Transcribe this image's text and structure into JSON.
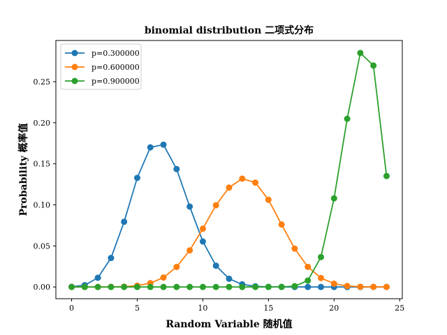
{
  "chart_data": {
    "type": "line",
    "title": "binomial distribution 二项式分布",
    "xlabel": "Random Variable 随机值",
    "ylabel": "Probability 概率值",
    "xlim": [
      -1.2,
      25.2
    ],
    "ylim": [
      -0.0143,
      0.3002
    ],
    "xticks": [
      0,
      5,
      10,
      15,
      20,
      25
    ],
    "xtick_labels": [
      "0",
      "5",
      "10",
      "15",
      "20",
      "25"
    ],
    "yticks": [
      0.0,
      0.05,
      0.1,
      0.15,
      0.2,
      0.25
    ],
    "ytick_labels": [
      "0.00",
      "0.05",
      "0.10",
      "0.15",
      "0.20",
      "0.25"
    ],
    "grid": false,
    "legend_position": "top-left",
    "markers": "circle",
    "x": [
      0,
      1,
      2,
      3,
      4,
      5,
      6,
      7,
      8,
      9,
      10,
      11,
      12,
      13,
      14,
      15,
      16,
      17,
      18,
      19,
      20,
      21,
      22,
      23,
      24
    ],
    "series": [
      {
        "name": "p=0.300000",
        "color": "#1f77b4",
        "values": [
          0.0002,
          0.0022,
          0.0112,
          0.0353,
          0.0794,
          0.1329,
          0.17,
          0.1733,
          0.1436,
          0.0979,
          0.0554,
          0.0259,
          0.01,
          0.0032,
          0.0008,
          0.0002,
          0.0,
          0.0,
          0.0,
          0.0,
          0.0,
          0.0,
          0.0,
          0.0,
          0.0
        ]
      },
      {
        "name": "p=0.600000",
        "color": "#ff7f0e",
        "values": [
          0.0,
          0.0,
          0.0,
          0.0001,
          0.0004,
          0.0016,
          0.0047,
          0.0115,
          0.0244,
          0.0446,
          0.071,
          0.0995,
          0.1211,
          0.1319,
          0.1271,
          0.1062,
          0.0761,
          0.0467,
          0.0245,
          0.0109,
          0.004,
          0.0012,
          0.0003,
          0.0001,
          0.0
        ]
      },
      {
        "name": "p=0.900000",
        "color": "#2ca02c",
        "values": [
          0.0,
          0.0,
          0.0,
          0.0,
          0.0,
          0.0,
          0.0,
          0.0,
          0.0,
          0.0,
          0.0,
          0.0,
          0.0,
          0.0,
          0.0,
          0.0,
          0.0001,
          0.001,
          0.0078,
          0.0364,
          0.1079,
          0.2048,
          0.285,
          0.2697,
          0.1351
        ]
      }
    ]
  }
}
